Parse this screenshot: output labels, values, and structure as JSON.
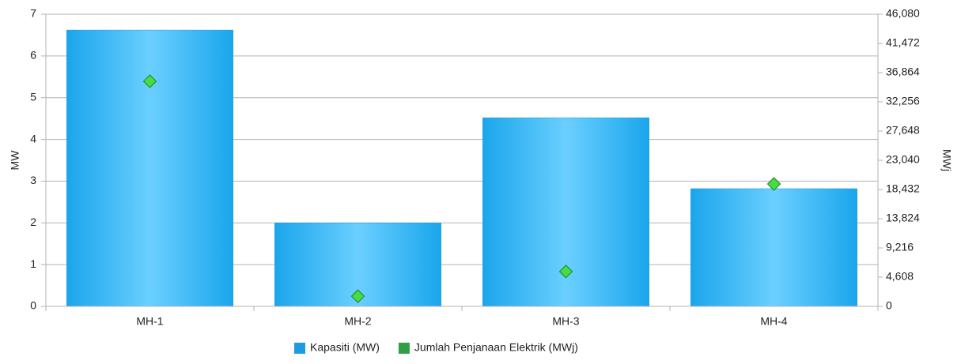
{
  "chart_data": {
    "type": "bar_scatter_combo",
    "y_label": "MW",
    "y2_label": "MWj",
    "categories": [
      "MH-1",
      "MH-2",
      "MH-3",
      "MH-4"
    ],
    "series": [
      {
        "name": "Kapasiti (MW)",
        "color": "#1e9be0",
        "type": "bar",
        "axis": "y",
        "values": [
          6.62,
          2.0,
          4.52,
          2.82
        ]
      },
      {
        "name": "Jumlah Penjanaan Elektrik (MWj)",
        "color": "#44dd44",
        "type": "scatter",
        "axis": "y2",
        "values": [
          35500,
          1600,
          5500,
          19300
        ]
      }
    ],
    "ylim": [
      0,
      7
    ],
    "yticks": [
      0,
      1,
      2,
      3,
      4,
      5,
      6,
      7
    ],
    "y2lim": [
      0,
      46080
    ],
    "y2ticks": [
      0,
      {
        "value": 4608,
        "label": "4,608"
      },
      {
        "value": 9216,
        "label": "9,216"
      },
      {
        "value": 13824,
        "label": "13,824"
      },
      {
        "value": 18432,
        "label": "18,432"
      },
      {
        "value": 23040,
        "label": "23,040"
      },
      {
        "value": 27648,
        "label": "27,648"
      },
      {
        "value": 32256,
        "label": "32,256"
      },
      {
        "value": 36864,
        "label": "36,864"
      },
      {
        "value": 41472,
        "label": "41,472"
      },
      {
        "value": 46080,
        "label": "46,080"
      }
    ],
    "grid": true
  }
}
